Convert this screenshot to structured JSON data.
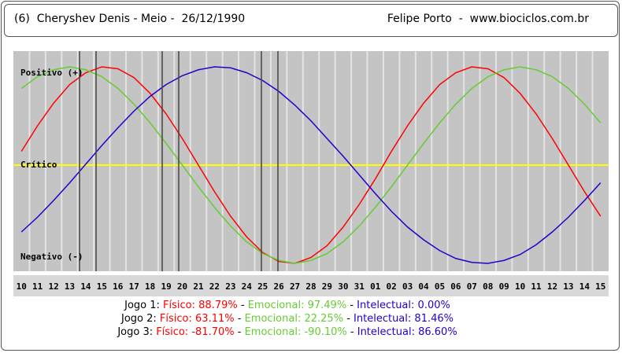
{
  "header": {
    "left": "(6)  Cheryshev Denis - Meio -  26/12/1990",
    "right": "Felipe Porto  -  www.biociclos.com.br"
  },
  "chart_data": {
    "type": "line",
    "categories": [
      "10",
      "11",
      "12",
      "13",
      "14",
      "15",
      "16",
      "17",
      "18",
      "19",
      "20",
      "21",
      "22",
      "23",
      "24",
      "25",
      "26",
      "27",
      "28",
      "29",
      "30",
      "31",
      "01",
      "02",
      "03",
      "04",
      "05",
      "06",
      "07",
      "08",
      "09",
      "10",
      "11",
      "12",
      "13",
      "14",
      "15"
    ],
    "series": [
      {
        "name": "Físico",
        "color": "#ff0000",
        "values": [
          14,
          40,
          63,
          82,
          94,
          100,
          98,
          89,
          73,
          52,
          27,
          0,
          -27,
          -52,
          -73,
          -89,
          -98,
          -100,
          -94,
          -82,
          -63,
          -40,
          -14,
          14,
          40,
          63,
          82,
          94,
          100,
          98,
          89,
          73,
          52,
          27,
          0,
          -27,
          -52
        ]
      },
      {
        "name": "Emocional",
        "color": "#66cc33",
        "values": [
          78,
          90,
          97,
          100,
          97,
          90,
          78,
          62,
          43,
          22,
          0,
          -22,
          -43,
          -62,
          -78,
          -90,
          -97,
          -100,
          -97,
          -90,
          -78,
          -62,
          -43,
          -22,
          0,
          22,
          43,
          62,
          78,
          90,
          97,
          100,
          97,
          90,
          78,
          62,
          43
        ]
      },
      {
        "name": "Intelectual",
        "color": "#2200cc",
        "values": [
          -68,
          -53,
          -36,
          -18,
          1,
          20,
          38,
          55,
          70,
          82,
          91,
          97,
          100,
          99,
          94,
          86,
          75,
          61,
          45,
          27,
          9,
          -10,
          -29,
          -47,
          -63,
          -76,
          -87,
          -95,
          -99,
          -100,
          -97,
          -91,
          -81,
          -68,
          -53,
          -36,
          -18
        ]
      }
    ],
    "ylim": [
      -100,
      100
    ],
    "yticks": [
      {
        "value": 0,
        "label": "Crítico"
      }
    ],
    "positive_label": "Positivo (+)",
    "negative_label": "Negativo (-)",
    "grid": true,
    "grid_color": "#ffff00"
  },
  "footer": {
    "separator": "-",
    "games": [
      {
        "name": "Jogo 1:",
        "items": [
          {
            "name": "Físico:",
            "value": 88.79,
            "value_label": "88.79%"
          },
          {
            "name": "Emocional:",
            "value": 97.49,
            "value_label": "97.49%"
          },
          {
            "name": "Intelectual:",
            "value": 0.0,
            "value_label": "0.00%"
          }
        ]
      },
      {
        "name": "Jogo 2:",
        "items": [
          {
            "name": "Físico:",
            "value": 63.11,
            "value_label": "63.11%"
          },
          {
            "name": "Emocional:",
            "value": 22.25,
            "value_label": "22.25%"
          },
          {
            "name": "Intelectual:",
            "value": 81.46,
            "value_label": "81.46%"
          }
        ]
      },
      {
        "name": "Jogo 3:",
        "items": [
          {
            "name": "Físico:",
            "value": -81.7,
            "value_label": "-81.70%"
          },
          {
            "name": "Emocional:",
            "value": -90.1,
            "value_label": "-90.10%"
          },
          {
            "name": "Intelectual:",
            "value": 86.6,
            "value_label": "86.60%"
          }
        ]
      }
    ]
  }
}
